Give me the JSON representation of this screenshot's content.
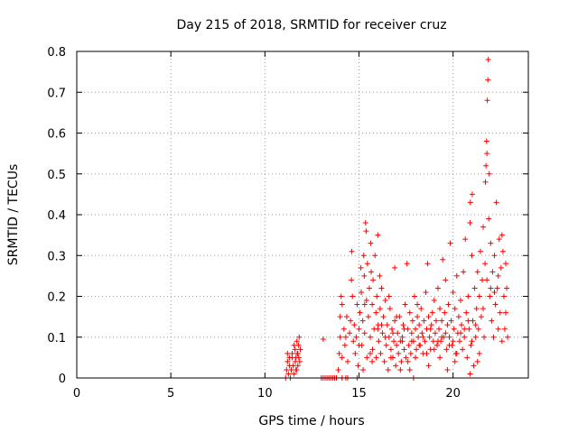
{
  "chart_data": {
    "type": "scatter",
    "title": "Day 215 of 2018, SRMTID for receiver cruz",
    "xlabel": "GPS time / hours",
    "ylabel": "SRMTID / TECUs",
    "xlim": [
      0,
      24
    ],
    "ylim": [
      0,
      0.8
    ],
    "xticks": [
      0,
      5,
      10,
      15,
      20
    ],
    "yticks": [
      0,
      0.1,
      0.2,
      0.3,
      0.4,
      0.5,
      0.6,
      0.7,
      0.8
    ],
    "xtick_labels": [
      "0",
      "5",
      "10",
      "15",
      "20"
    ],
    "ytick_labels": [
      "0",
      "0.1",
      "0.2",
      "0.3",
      "0.4",
      "0.5",
      "0.6",
      "0.7",
      "0.8"
    ],
    "grid": true,
    "marker": "+",
    "color": "#ff0000",
    "series": [
      {
        "name": "SRMTID",
        "points": [
          [
            11.1,
            0.0
          ],
          [
            11.15,
            0.02
          ],
          [
            11.2,
            0.04
          ],
          [
            11.25,
            0.01
          ],
          [
            11.3,
            0.05
          ],
          [
            11.35,
            0.0
          ],
          [
            11.4,
            0.02
          ],
          [
            11.45,
            0.06
          ],
          [
            11.5,
            0.03
          ],
          [
            11.55,
            0.01
          ],
          [
            11.6,
            0.07
          ],
          [
            11.62,
            0.04
          ],
          [
            11.65,
            0.05
          ],
          [
            11.68,
            0.02
          ],
          [
            11.7,
            0.09
          ],
          [
            11.72,
            0.06
          ],
          [
            11.75,
            0.03
          ],
          [
            11.78,
            0.08
          ],
          [
            11.8,
            0.05
          ],
          [
            11.82,
            0.1
          ],
          [
            11.85,
            0.04
          ],
          [
            11.88,
            0.07
          ],
          [
            11.2,
            0.06
          ],
          [
            11.3,
            0.03
          ],
          [
            11.45,
            0.05
          ],
          [
            11.55,
            0.08
          ],
          [
            11.65,
            0.02
          ],
          [
            11.75,
            0.06
          ],
          [
            13.0,
            0.0
          ],
          [
            13.1,
            0.0
          ],
          [
            13.2,
            0.0
          ],
          [
            13.3,
            0.0
          ],
          [
            13.4,
            0.0
          ],
          [
            13.5,
            0.0
          ],
          [
            13.6,
            0.0
          ],
          [
            13.7,
            0.0
          ],
          [
            13.8,
            0.0
          ],
          [
            14.1,
            0.0
          ],
          [
            14.3,
            0.0
          ],
          [
            14.4,
            0.0
          ],
          [
            14.9,
            0.0
          ],
          [
            17.9,
            0.0
          ],
          [
            13.1,
            0.095
          ],
          [
            13.9,
            0.02
          ],
          [
            13.95,
            0.06
          ],
          [
            14.0,
            0.1
          ],
          [
            14.0,
            0.15
          ],
          [
            14.05,
            0.2
          ],
          [
            14.1,
            0.18
          ],
          [
            14.1,
            0.05
          ],
          [
            14.2,
            0.12
          ],
          [
            14.25,
            0.08
          ],
          [
            14.3,
            0.1
          ],
          [
            14.35,
            0.15
          ],
          [
            14.4,
            0.04
          ],
          [
            14.5,
            0.11
          ],
          [
            14.55,
            0.14
          ],
          [
            14.6,
            0.24
          ],
          [
            14.62,
            0.31
          ],
          [
            14.65,
            0.2
          ],
          [
            14.7,
            0.09
          ],
          [
            14.75,
            0.13
          ],
          [
            14.8,
            0.06
          ],
          [
            14.85,
            0.1
          ],
          [
            14.9,
            0.18
          ],
          [
            14.95,
            0.03
          ],
          [
            15.0,
            0.12
          ],
          [
            15.05,
            0.16
          ],
          [
            15.1,
            0.27
          ],
          [
            15.12,
            0.21
          ],
          [
            15.15,
            0.08
          ],
          [
            15.2,
            0.14
          ],
          [
            15.22,
            0.02
          ],
          [
            15.25,
            0.3
          ],
          [
            15.28,
            0.25
          ],
          [
            15.3,
            0.11
          ],
          [
            15.35,
            0.38
          ],
          [
            15.38,
            0.36
          ],
          [
            15.4,
            0.19
          ],
          [
            15.42,
            0.05
          ],
          [
            15.45,
            0.28
          ],
          [
            15.5,
            0.15
          ],
          [
            15.55,
            0.22
          ],
          [
            15.6,
            0.1
          ],
          [
            15.62,
            0.33
          ],
          [
            15.65,
            0.26
          ],
          [
            15.7,
            0.18
          ],
          [
            15.72,
            0.07
          ],
          [
            15.75,
            0.24
          ],
          [
            15.8,
            0.12
          ],
          [
            15.85,
            0.3
          ],
          [
            15.9,
            0.16
          ],
          [
            15.92,
            0.05
          ],
          [
            15.95,
            0.2
          ],
          [
            16.0,
            0.35
          ],
          [
            16.02,
            0.13
          ],
          [
            16.05,
            0.09
          ],
          [
            16.1,
            0.25
          ],
          [
            16.12,
            0.17
          ],
          [
            16.15,
            0.06
          ],
          [
            16.2,
            0.22
          ],
          [
            16.25,
            0.11
          ],
          [
            16.3,
            0.15
          ],
          [
            16.35,
            0.04
          ],
          [
            16.4,
            0.19
          ],
          [
            16.45,
            0.08
          ],
          [
            16.5,
            0.13
          ],
          [
            16.55,
            0.02
          ],
          [
            16.6,
            0.1
          ],
          [
            16.65,
            0.17
          ],
          [
            16.7,
            0.07
          ],
          [
            16.75,
            0.12
          ],
          [
            16.8,
            0.05
          ],
          [
            16.85,
            0.09
          ],
          [
            16.9,
            0.14
          ],
          [
            16.95,
            0.03
          ],
          [
            17.0,
            0.08
          ],
          [
            17.05,
            0.11
          ],
          [
            17.1,
            0.06
          ],
          [
            17.15,
            0.15
          ],
          [
            17.2,
            0.09
          ],
          [
            17.25,
            0.04
          ],
          [
            17.3,
            0.1
          ],
          [
            17.35,
            0.13
          ],
          [
            17.4,
            0.07
          ],
          [
            17.45,
            0.18
          ],
          [
            17.5,
            0.05
          ],
          [
            17.55,
            0.28
          ],
          [
            17.6,
            0.12
          ],
          [
            17.65,
            0.08
          ],
          [
            17.7,
            0.16
          ],
          [
            17.75,
            0.06
          ],
          [
            17.8,
            0.11
          ],
          [
            17.85,
            0.14
          ],
          [
            17.9,
            0.09
          ],
          [
            17.95,
            0.2
          ],
          [
            18.0,
            0.12
          ],
          [
            18.05,
            0.07
          ],
          [
            18.1,
            0.15
          ],
          [
            18.15,
            0.1
          ],
          [
            18.2,
            0.13
          ],
          [
            18.25,
            0.08
          ],
          [
            18.3,
            0.17
          ],
          [
            18.35,
            0.11
          ],
          [
            18.4,
            0.06
          ],
          [
            18.45,
            0.14
          ],
          [
            18.5,
            0.09
          ],
          [
            18.55,
            0.21
          ],
          [
            18.6,
            0.12
          ],
          [
            18.65,
            0.28
          ],
          [
            18.7,
            0.15
          ],
          [
            18.75,
            0.1
          ],
          [
            18.8,
            0.07
          ],
          [
            18.85,
            0.13
          ],
          [
            18.9,
            0.16
          ],
          [
            18.95,
            0.09
          ],
          [
            19.0,
            0.19
          ],
          [
            19.05,
            0.11
          ],
          [
            19.1,
            0.14
          ],
          [
            19.15,
            0.08
          ],
          [
            19.2,
            0.22
          ],
          [
            19.25,
            0.12
          ],
          [
            19.3,
            0.17
          ],
          [
            19.35,
            0.09
          ],
          [
            19.4,
            0.14
          ],
          [
            19.45,
            0.29
          ],
          [
            19.5,
            0.1
          ],
          [
            19.55,
            0.16
          ],
          [
            19.6,
            0.24
          ],
          [
            19.65,
            0.07
          ],
          [
            19.7,
            0.13
          ],
          [
            19.75,
            0.18
          ],
          [
            19.8,
            0.1
          ],
          [
            19.85,
            0.33
          ],
          [
            19.9,
            0.14
          ],
          [
            19.95,
            0.08
          ],
          [
            20.0,
            0.21
          ],
          [
            20.05,
            0.12
          ],
          [
            20.1,
            0.17
          ],
          [
            20.15,
            0.06
          ],
          [
            20.2,
            0.25
          ],
          [
            20.25,
            0.11
          ],
          [
            20.3,
            0.15
          ],
          [
            20.35,
            0.09
          ],
          [
            20.4,
            0.19
          ],
          [
            20.45,
            0.13
          ],
          [
            20.5,
            0.07
          ],
          [
            20.55,
            0.26
          ],
          [
            20.6,
            0.1
          ],
          [
            20.65,
            0.34
          ],
          [
            20.7,
            0.16
          ],
          [
            20.75,
            0.05
          ],
          [
            20.8,
            0.2
          ],
          [
            20.85,
            0.12
          ],
          [
            20.9,
            0.38
          ],
          [
            20.92,
            0.43
          ],
          [
            20.95,
            0.08
          ],
          [
            21.0,
            0.3
          ],
          [
            21.02,
            0.45
          ],
          [
            21.05,
            0.14
          ],
          [
            21.1,
            0.03
          ],
          [
            21.15,
            0.22
          ],
          [
            21.2,
            0.1
          ],
          [
            21.25,
            0.17
          ],
          [
            21.3,
            0.26
          ],
          [
            21.35,
            0.12
          ],
          [
            21.4,
            0.2
          ],
          [
            21.45,
            0.31
          ],
          [
            21.5,
            0.15
          ],
          [
            21.55,
            0.24
          ],
          [
            21.6,
            0.37
          ],
          [
            21.65,
            0.1
          ],
          [
            21.7,
            0.28
          ],
          [
            21.72,
            0.48
          ],
          [
            21.75,
            0.52
          ],
          [
            21.78,
            0.58
          ],
          [
            21.8,
            0.55
          ],
          [
            21.82,
            0.68
          ],
          [
            21.85,
            0.73
          ],
          [
            21.87,
            0.78
          ],
          [
            21.9,
            0.39
          ],
          [
            21.92,
            0.5
          ],
          [
            21.95,
            0.2
          ],
          [
            22.0,
            0.33
          ],
          [
            22.05,
            0.14
          ],
          [
            22.1,
            0.26
          ],
          [
            22.15,
            0.1
          ],
          [
            22.2,
            0.3
          ],
          [
            22.25,
            0.18
          ],
          [
            22.3,
            0.43
          ],
          [
            22.35,
            0.22
          ],
          [
            22.4,
            0.12
          ],
          [
            22.45,
            0.34
          ],
          [
            22.5,
            0.16
          ],
          [
            22.55,
            0.27
          ],
          [
            22.6,
            0.09
          ],
          [
            22.65,
            0.31
          ],
          [
            22.7,
            0.2
          ],
          [
            22.75,
            0.12
          ],
          [
            22.8,
            0.28
          ],
          [
            22.85,
            0.22
          ],
          [
            22.9,
            0.1
          ],
          [
            15.0,
            0.08
          ],
          [
            15.3,
            0.18
          ],
          [
            15.6,
            0.06
          ],
          [
            16.0,
            0.12
          ],
          [
            16.4,
            0.1
          ],
          [
            16.8,
            0.11
          ],
          [
            17.2,
            0.02
          ],
          [
            17.6,
            0.04
          ],
          [
            18.0,
            0.05
          ],
          [
            18.4,
            0.1
          ],
          [
            18.8,
            0.12
          ],
          [
            19.2,
            0.09
          ],
          [
            19.6,
            0.11
          ],
          [
            20.0,
            0.09
          ],
          [
            20.4,
            0.11
          ],
          [
            20.8,
            0.14
          ],
          [
            21.2,
            0.13
          ],
          [
            21.6,
            0.17
          ],
          [
            22.0,
            0.22
          ],
          [
            22.4,
            0.25
          ],
          [
            22.8,
            0.16
          ],
          [
            16.6,
            0.2
          ],
          [
            17.0,
            0.15
          ],
          [
            17.4,
            0.12
          ],
          [
            17.8,
            0.09
          ],
          [
            18.2,
            0.08
          ],
          [
            18.6,
            0.06
          ],
          [
            19.0,
            0.07
          ],
          [
            19.4,
            0.1
          ],
          [
            19.8,
            0.08
          ],
          [
            20.2,
            0.06
          ],
          [
            20.6,
            0.12
          ],
          [
            21.0,
            0.09
          ],
          [
            21.4,
            0.06
          ],
          [
            21.8,
            0.24
          ],
          [
            22.2,
            0.21
          ],
          [
            22.6,
            0.35
          ],
          [
            16.2,
            0.13
          ],
          [
            16.7,
            0.05
          ],
          [
            17.3,
            0.09
          ],
          [
            18.7,
            0.03
          ],
          [
            19.3,
            0.05
          ],
          [
            20.1,
            0.04
          ],
          [
            20.9,
            0.01
          ],
          [
            21.3,
            0.04
          ],
          [
            15.7,
            0.04
          ],
          [
            16.9,
            0.27
          ],
          [
            17.7,
            0.02
          ],
          [
            18.1,
            0.18
          ],
          [
            19.7,
            0.02
          ]
        ]
      }
    ]
  }
}
